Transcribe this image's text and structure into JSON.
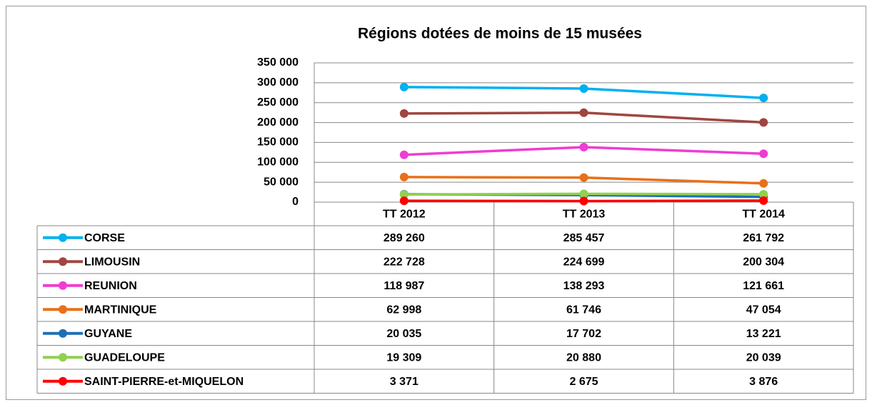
{
  "chart_data": {
    "type": "line",
    "title": "Régions dotées de moins de 15 musées",
    "categories": [
      "TT 2012",
      "TT 2013",
      "TT 2014"
    ],
    "ylim": [
      0,
      350000
    ],
    "yticks": [
      0,
      {
        "value": 50000,
        "label": "50 000"
      },
      {
        "value": 100000,
        "label": "100 000"
      },
      {
        "value": 150000,
        "label": "150 000"
      },
      {
        "value": 200000,
        "label": "200 000"
      },
      {
        "value": 250000,
        "label": "250 000"
      },
      {
        "value": 300000,
        "label": "300 000"
      },
      {
        "value": 350000,
        "label": "350 000"
      }
    ],
    "grid": true,
    "series": [
      {
        "name": "CORSE",
        "color": "#00b0f0",
        "values": [
          289260,
          285457,
          261792
        ],
        "value_labels": [
          "289 260",
          "285 457",
          "261 792"
        ]
      },
      {
        "name": "LIMOUSIN",
        "color": "#a0453f",
        "values": [
          222728,
          224699,
          200304
        ],
        "value_labels": [
          "222 728",
          "224 699",
          "200 304"
        ]
      },
      {
        "name": "REUNION",
        "color": "#f03cd2",
        "values": [
          118987,
          138293,
          121661
        ],
        "value_labels": [
          "118 987",
          "138 293",
          "121 661"
        ]
      },
      {
        "name": "MARTINIQUE",
        "color": "#e8701a",
        "values": [
          62998,
          61746,
          47054
        ],
        "value_labels": [
          "62 998",
          "61 746",
          "47 054"
        ]
      },
      {
        "name": "GUYANE",
        "color": "#1f6fb5",
        "values": [
          20035,
          17702,
          13221
        ],
        "value_labels": [
          "20 035",
          "17 702",
          "13 221"
        ]
      },
      {
        "name": "GUADELOUPE",
        "color": "#92d050",
        "values": [
          19309,
          20880,
          20039
        ],
        "value_labels": [
          "19 309",
          "20 880",
          "20 039"
        ]
      },
      {
        "name": "SAINT-PIERRE-et-MIQUELON",
        "color": "#ff0000",
        "values": [
          3371,
          2675,
          3876
        ],
        "value_labels": [
          "3 371",
          "2 675",
          "3 876"
        ]
      }
    ]
  }
}
